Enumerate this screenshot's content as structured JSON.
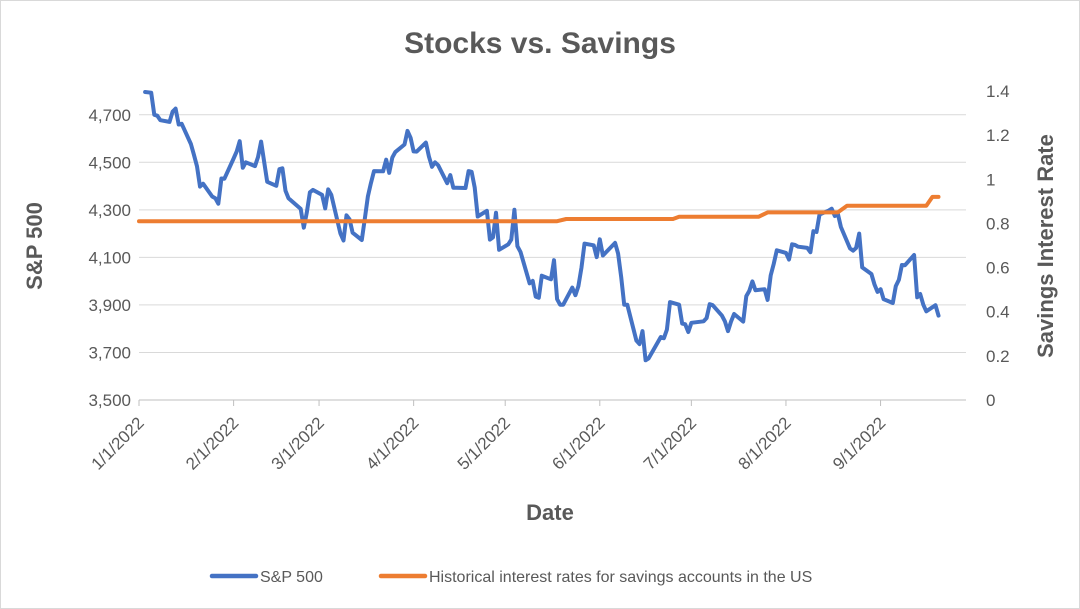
{
  "chart_data": {
    "type": "line",
    "title": "Stocks vs. Savings",
    "xlabel": "Date",
    "ylabel": "S&P 500",
    "y2label": "Savings Interest Rate",
    "x_tick_labels": [
      "1/1/2022",
      "2/1/2022",
      "3/1/2022",
      "4/1/2022",
      "5/1/2022",
      "6/1/2022",
      "7/1/2022",
      "8/1/2022",
      "9/1/2022"
    ],
    "x_tick_days": [
      0,
      31,
      59,
      90,
      120,
      151,
      181,
      212,
      243
    ],
    "xlim_days": [
      0,
      271
    ],
    "ylim": [
      3500,
      4800
    ],
    "y_ticks": [
      3500,
      3700,
      3900,
      4100,
      4300,
      4500,
      4700
    ],
    "y_tick_labels": [
      "3,500",
      "3,700",
      "3,900",
      "4,100",
      "4,300",
      "4,500",
      "4,700"
    ],
    "y2lim": [
      0,
      1.4
    ],
    "y2_ticks": [
      0,
      0.2,
      0.4,
      0.6,
      0.8,
      1,
      1.2,
      1.4
    ],
    "y2_tick_labels": [
      "0",
      "0.2",
      "0.4",
      "0.6",
      "0.8",
      "1",
      "1.2",
      "1.4"
    ],
    "grid": true,
    "legend_position": "bottom",
    "series": [
      {
        "name": "S&P 500",
        "axis": "left",
        "color": "#4472C4",
        "points": [
          [
            2,
            4796
          ],
          [
            4,
            4793
          ],
          [
            5,
            4700
          ],
          [
            6,
            4696
          ],
          [
            7,
            4677
          ],
          [
            10,
            4670
          ],
          [
            11,
            4713
          ],
          [
            12,
            4726
          ],
          [
            13,
            4659
          ],
          [
            14,
            4662
          ],
          [
            17,
            4577
          ],
          [
            18,
            4532
          ],
          [
            19,
            4483
          ],
          [
            20,
            4398
          ],
          [
            21,
            4410
          ],
          [
            24,
            4356
          ],
          [
            25,
            4349
          ],
          [
            26,
            4326
          ],
          [
            27,
            4432
          ],
          [
            28,
            4431
          ],
          [
            31,
            4516
          ],
          [
            32,
            4546
          ],
          [
            33,
            4589
          ],
          [
            34,
            4477
          ],
          [
            35,
            4500
          ],
          [
            38,
            4484
          ],
          [
            39,
            4522
          ],
          [
            40,
            4587
          ],
          [
            41,
            4504
          ],
          [
            42,
            4418
          ],
          [
            45,
            4401
          ],
          [
            46,
            4471
          ],
          [
            47,
            4475
          ],
          [
            48,
            4380
          ],
          [
            49,
            4349
          ],
          [
            53,
            4304
          ],
          [
            54,
            4225
          ],
          [
            55,
            4289
          ],
          [
            56,
            4374
          ],
          [
            57,
            4384
          ],
          [
            60,
            4363
          ],
          [
            61,
            4306
          ],
          [
            62,
            4386
          ],
          [
            63,
            4363
          ],
          [
            66,
            4201
          ],
          [
            67,
            4171
          ],
          [
            68,
            4277
          ],
          [
            69,
            4260
          ],
          [
            70,
            4204
          ],
          [
            73,
            4173
          ],
          [
            74,
            4262
          ],
          [
            75,
            4357
          ],
          [
            76,
            4412
          ],
          [
            77,
            4463
          ],
          [
            80,
            4462
          ],
          [
            81,
            4511
          ],
          [
            82,
            4456
          ],
          [
            83,
            4520
          ],
          [
            84,
            4543
          ],
          [
            87,
            4575
          ],
          [
            88,
            4632
          ],
          [
            89,
            4603
          ],
          [
            90,
            4546
          ],
          [
            91,
            4545
          ],
          [
            94,
            4583
          ],
          [
            95,
            4525
          ],
          [
            96,
            4481
          ],
          [
            97,
            4500
          ],
          [
            98,
            4488
          ],
          [
            101,
            4412
          ],
          [
            102,
            4446
          ],
          [
            103,
            4393
          ],
          [
            104,
            4393
          ],
          [
            107,
            4392
          ],
          [
            108,
            4463
          ],
          [
            109,
            4460
          ],
          [
            110,
            4394
          ],
          [
            111,
            4272
          ],
          [
            114,
            4296
          ],
          [
            115,
            4175
          ],
          [
            116,
            4184
          ],
          [
            117,
            4288
          ],
          [
            118,
            4132
          ],
          [
            121,
            4155
          ],
          [
            122,
            4175
          ],
          [
            123,
            4300
          ],
          [
            124,
            4147
          ],
          [
            125,
            4123
          ],
          [
            128,
            3991
          ],
          [
            129,
            4001
          ],
          [
            130,
            3935
          ],
          [
            131,
            3930
          ],
          [
            132,
            4023
          ],
          [
            135,
            4008
          ],
          [
            136,
            4088
          ],
          [
            137,
            3924
          ],
          [
            138,
            3901
          ],
          [
            139,
            3901
          ],
          [
            142,
            3973
          ],
          [
            143,
            3941
          ],
          [
            144,
            3979
          ],
          [
            145,
            4058
          ],
          [
            146,
            4158
          ],
          [
            149,
            4151
          ],
          [
            150,
            4101
          ],
          [
            151,
            4176
          ],
          [
            152,
            4108
          ],
          [
            153,
            4121
          ],
          [
            156,
            4161
          ],
          [
            157,
            4116
          ],
          [
            158,
            4017
          ],
          [
            159,
            3901
          ],
          [
            160,
            3901
          ],
          [
            163,
            3750
          ],
          [
            164,
            3735
          ],
          [
            165,
            3790
          ],
          [
            166,
            3667
          ],
          [
            167,
            3675
          ],
          [
            171,
            3765
          ],
          [
            172,
            3760
          ],
          [
            173,
            3796
          ],
          [
            174,
            3912
          ],
          [
            177,
            3901
          ],
          [
            178,
            3821
          ],
          [
            179,
            3819
          ],
          [
            180,
            3786
          ],
          [
            181,
            3825
          ],
          [
            185,
            3831
          ],
          [
            186,
            3845
          ],
          [
            187,
            3903
          ],
          [
            188,
            3899
          ],
          [
            191,
            3855
          ],
          [
            192,
            3831
          ],
          [
            193,
            3790
          ],
          [
            194,
            3830
          ],
          [
            195,
            3862
          ],
          [
            198,
            3830
          ],
          [
            199,
            3937
          ],
          [
            200,
            3959
          ],
          [
            201,
            3999
          ],
          [
            202,
            3962
          ],
          [
            205,
            3966
          ],
          [
            206,
            3921
          ],
          [
            207,
            4024
          ],
          [
            208,
            4072
          ],
          [
            209,
            4130
          ],
          [
            212,
            4119
          ],
          [
            213,
            4091
          ],
          [
            214,
            4155
          ],
          [
            215,
            4152
          ],
          [
            216,
            4145
          ],
          [
            219,
            4140
          ],
          [
            220,
            4122
          ],
          [
            221,
            4210
          ],
          [
            222,
            4207
          ],
          [
            223,
            4280
          ],
          [
            226,
            4297
          ],
          [
            227,
            4305
          ],
          [
            228,
            4274
          ],
          [
            229,
            4284
          ],
          [
            230,
            4228
          ],
          [
            233,
            4138
          ],
          [
            234,
            4128
          ],
          [
            235,
            4140
          ],
          [
            236,
            4200
          ],
          [
            237,
            4058
          ],
          [
            240,
            4030
          ],
          [
            241,
            3986
          ],
          [
            242,
            3955
          ],
          [
            243,
            3966
          ],
          [
            244,
            3924
          ],
          [
            247,
            3908
          ],
          [
            248,
            3979
          ],
          [
            249,
            4006
          ],
          [
            250,
            4068
          ],
          [
            251,
            4067
          ],
          [
            254,
            4110
          ],
          [
            255,
            3932
          ],
          [
            256,
            3946
          ],
          [
            257,
            3901
          ],
          [
            258,
            3873
          ],
          [
            261,
            3899
          ],
          [
            262,
            3855
          ]
        ]
      },
      {
        "name": "Historical interest rates for savings accounts in the US",
        "axis": "right",
        "color": "#ED7D31",
        "points": [
          [
            0,
            0.81
          ],
          [
            137,
            0.81
          ],
          [
            140,
            0.82
          ],
          [
            175,
            0.82
          ],
          [
            177,
            0.83
          ],
          [
            203,
            0.83
          ],
          [
            206,
            0.85
          ],
          [
            229,
            0.85
          ],
          [
            232,
            0.88
          ],
          [
            258,
            0.88
          ],
          [
            260,
            0.92
          ],
          [
            262,
            0.92
          ]
        ]
      }
    ]
  }
}
